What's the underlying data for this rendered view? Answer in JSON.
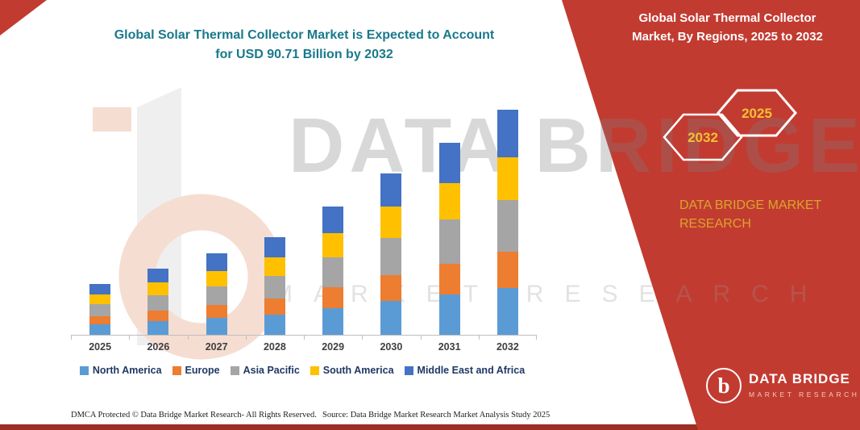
{
  "title": {
    "line1": "Global Solar Thermal Collector Market is Expected to Account",
    "line2": "for USD 90.71 Billion by 2032"
  },
  "banner": {
    "heading_line1": "Global Solar Thermal Collector",
    "heading_line2": "Market, By Regions, 2025 to 2032",
    "hex_left_year": "2032",
    "hex_right_year": "2025",
    "brand_line1": "DATA BRIDGE MARKET",
    "brand_line2": "RESEARCH",
    "accent_color": "#c23b31",
    "gold_color": "#d9a62a"
  },
  "watermark": {
    "line1": "DATA BRIDGE",
    "line2": "MARKET RESEARCH"
  },
  "logo": {
    "letter": "b",
    "title": "DATA BRIDGE",
    "sub": "MARKET RESEARCH"
  },
  "footer": {
    "dmca": "DMCA Protected © Data Bridge Market Research-  All Rights Reserved.",
    "source": "Source: Data Bridge Market Research  Market Analysis Study 2025"
  },
  "chart_data": {
    "type": "bar",
    "stacked": true,
    "title": "Global Solar Thermal Collector Market is Expected to Account for USD 90.71 Billion by 2032",
    "unit": "USD Billion",
    "categories": [
      "2025",
      "2026",
      "2027",
      "2028",
      "2029",
      "2030",
      "2031",
      "2032"
    ],
    "series": [
      {
        "name": "North America",
        "color": "#5B9BD5",
        "values": [
          4.3,
          5.6,
          6.9,
          8.3,
          10.9,
          13.7,
          16.3,
          19.0
        ]
      },
      {
        "name": "Europe",
        "color": "#ED7D31",
        "values": [
          3.3,
          4.3,
          5.2,
          6.3,
          8.3,
          10.4,
          12.4,
          14.5
        ]
      },
      {
        "name": "Asia Pacific",
        "color": "#A5A5A5",
        "values": [
          4.7,
          6.1,
          7.5,
          9.1,
          11.9,
          15.0,
          17.8,
          20.9
        ]
      },
      {
        "name": "South America",
        "color": "#FFC000",
        "values": [
          3.9,
          5.1,
          6.2,
          7.5,
          9.8,
          12.4,
          14.7,
          17.2
        ]
      },
      {
        "name": "Middle East and Africa",
        "color": "#4472C4",
        "values": [
          4.2,
          5.5,
          6.9,
          8.3,
          10.9,
          13.6,
          16.2,
          19.11
        ]
      }
    ],
    "totals": [
      20.4,
      26.6,
      32.7,
      39.5,
      51.8,
      65.1,
      77.4,
      90.71
    ],
    "ylim": [
      0,
      91
    ],
    "grid": false,
    "legend_position": "bottom"
  }
}
